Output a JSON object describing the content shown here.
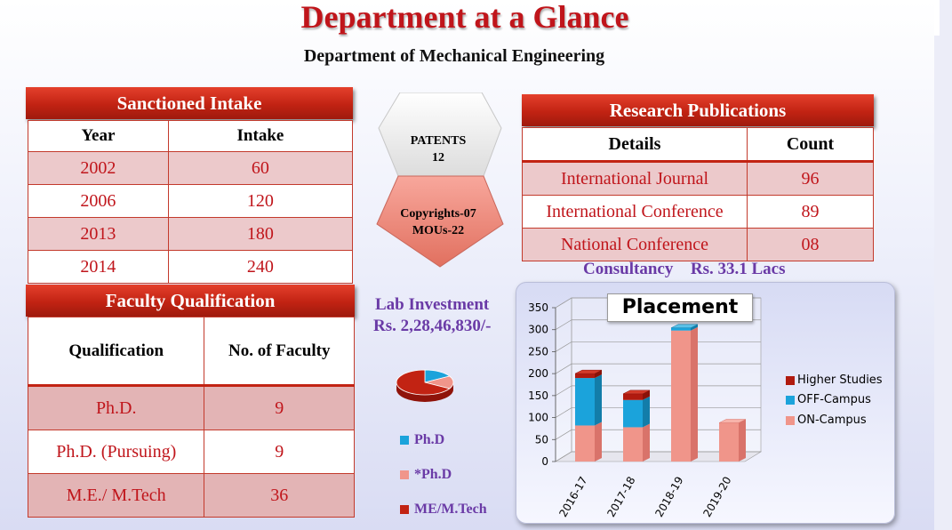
{
  "title": "Department at a Glance",
  "subtitle": "Department of Mechanical Engineering",
  "sanctioned_intake": {
    "heading": "Sanctioned Intake",
    "columns": [
      "Year",
      "Intake"
    ],
    "rows": [
      [
        "2002",
        "60"
      ],
      [
        "2006",
        "120"
      ],
      [
        "2013",
        "180"
      ],
      [
        "2014",
        "240"
      ]
    ]
  },
  "faculty": {
    "heading": "Faculty Qualification",
    "columns": [
      "Qualification",
      "No. of Faculty"
    ],
    "rows": [
      [
        "Ph.D.",
        "9"
      ],
      [
        "Ph.D. (Pursuing)",
        "9"
      ],
      [
        "M.E./ M.Tech",
        "36"
      ]
    ]
  },
  "patents": {
    "label": "PATENTS",
    "value": "12",
    "line1": "Copyrights-07",
    "line2": "MOUs-22"
  },
  "research": {
    "heading": "Research Publications",
    "columns": [
      "Details",
      "Count"
    ],
    "rows": [
      [
        "International Journal",
        "96"
      ],
      [
        "International Conference",
        "89"
      ],
      [
        "National Conference",
        "08"
      ]
    ]
  },
  "consultancy": {
    "label": "Consultancy",
    "value": "Rs. 33.1 Lacs"
  },
  "lab_investment": {
    "label": "Lab Investment",
    "value": "Rs. 2,28,46,830/-"
  },
  "colors": {
    "accent_red": "#c22313",
    "title_red": "#c0151b",
    "purple": "#6a3aa6",
    "blue": "#1ba3db",
    "salmon": "#f0958a",
    "dark_red": "#b01a0f"
  },
  "chart_data": [
    {
      "type": "pie",
      "categories": [
        "Ph.D",
        "*Ph.D",
        "ME/M.Tech"
      ],
      "values": [
        9,
        9,
        36
      ],
      "legend": [
        "Ph.D",
        "*Ph.D",
        "ME/M.Tech"
      ]
    },
    {
      "type": "bar",
      "stacked": true,
      "title": "Placement",
      "categories": [
        "2016-17",
        "2017-18",
        "2018-19",
        "2019-20"
      ],
      "series": [
        {
          "name": "ON-Campus",
          "values": [
            82,
            78,
            298,
            88
          ]
        },
        {
          "name": "OFF-Campus",
          "values": [
            108,
            62,
            6,
            0
          ]
        },
        {
          "name": "Higher Studies",
          "values": [
            10,
            14,
            0,
            0
          ]
        }
      ],
      "legend_order": [
        "Higher Studies",
        "OFF-Campus",
        "ON-Campus"
      ],
      "yticks": [
        "0",
        "50",
        "100",
        "150",
        "200",
        "250",
        "300",
        "350"
      ],
      "ylim": [
        0,
        350
      ],
      "legend_position": "right",
      "grid": true
    }
  ]
}
